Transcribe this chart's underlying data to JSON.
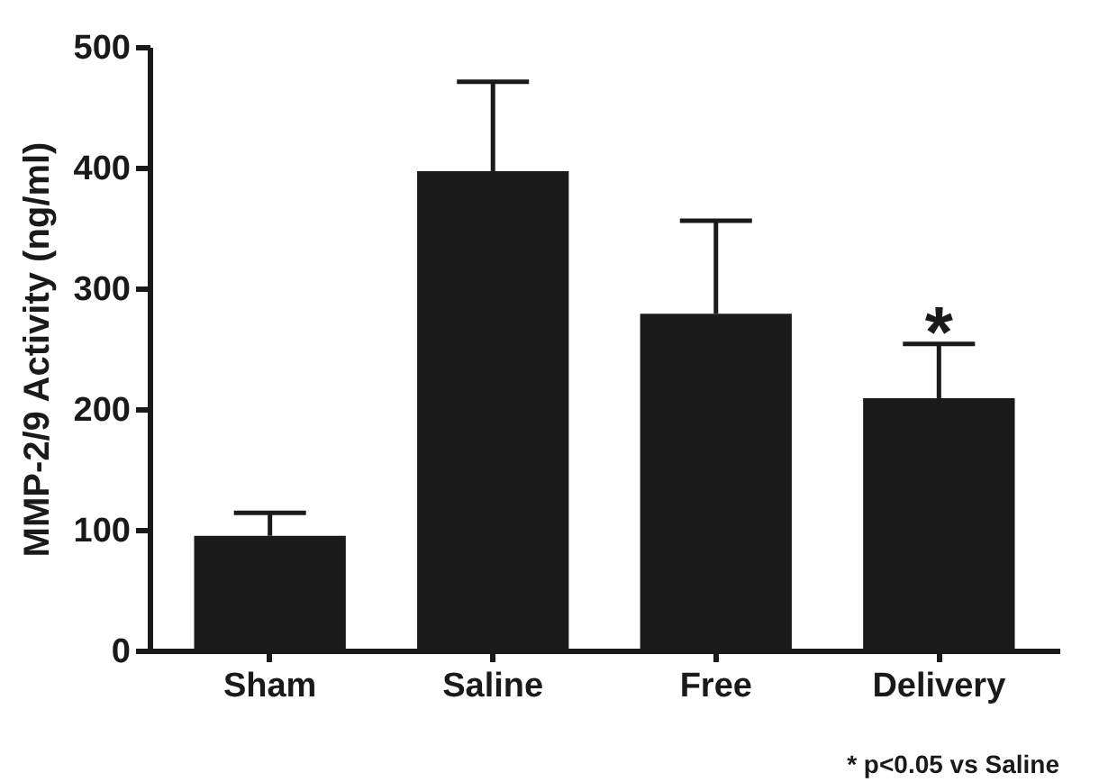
{
  "chart_data": {
    "type": "bar",
    "ylabel": "MMP-2/9 Activity (ng/ml)",
    "categories": [
      "Sham",
      "Saline",
      "Free",
      "Delivery"
    ],
    "values": [
      95,
      397,
      279,
      209
    ],
    "color": "#1a1a1a",
    "errors": [
      [
        95,
        114
      ],
      [
        397,
        471
      ],
      [
        279,
        356
      ],
      [
        209,
        254
      ]
    ],
    "ylim": [
      0,
      500
    ],
    "yticks": [
      0,
      100,
      200,
      300,
      400,
      500
    ],
    "grid": false,
    "annotations": [
      {
        "text": "*",
        "x": "Delivery",
        "y": 264
      },
      "* p<0.05 vs Saline"
    ]
  }
}
